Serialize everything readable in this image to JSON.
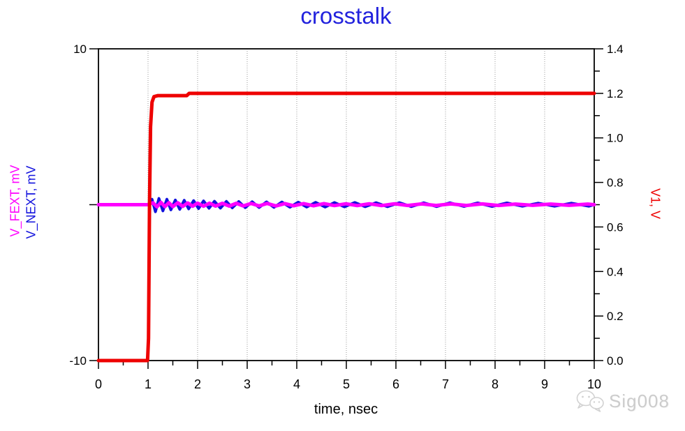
{
  "title": {
    "text": "crosstalk"
  },
  "colors": {
    "title": "#2222dd",
    "v1_trace": "#ee0000",
    "fext_trace": "#ff00ff",
    "next_trace": "#1111dd",
    "axis": "#000000",
    "grid": "#999999",
    "watermark": "#cccccc"
  },
  "watermark": {
    "icon": "wechat-icon",
    "label": "Sig008"
  },
  "chart_data": {
    "type": "line",
    "title": "crosstalk",
    "xlabel": "time, nsec",
    "grid": "vertical-dotted",
    "x_axis": {
      "range": [
        0,
        10
      ],
      "major_ticks": [
        0,
        1,
        2,
        3,
        4,
        5,
        6,
        7,
        8,
        9,
        10
      ],
      "minor_step": 0.5,
      "grid_lines": [
        1,
        2,
        3,
        4,
        5,
        6,
        7,
        8,
        9
      ]
    },
    "left_axis": {
      "labels": [
        {
          "text": "V_FEXT, mV",
          "color": "#ff00ff"
        },
        {
          "text": "V_NEXT, mV",
          "color": "#1111dd"
        }
      ],
      "range": [
        -10,
        10
      ],
      "ticks": [
        {
          "value": 10,
          "label": "10"
        },
        {
          "value": 0,
          "label": ""
        },
        {
          "value": -10,
          "label": "-10"
        }
      ]
    },
    "right_axis": {
      "label": "V1, V",
      "range": [
        0,
        1.4
      ],
      "major_tick_step": 0.2,
      "minor_tick_step": 0.1,
      "tick_labels": [
        "0.0",
        "0.2",
        "0.4",
        "0.6",
        "0.8",
        "1.0",
        "1.2",
        "1.4"
      ]
    },
    "series": [
      {
        "name": "V_NEXT",
        "axis": "left",
        "color": "#1111dd",
        "width": 4,
        "points": [
          [
            1.0,
            0
          ],
          [
            1.08,
            0.35
          ],
          [
            1.15,
            -0.45
          ],
          [
            1.22,
            0.4
          ],
          [
            1.3,
            -0.4
          ],
          [
            1.38,
            0.35
          ],
          [
            1.46,
            -0.33
          ],
          [
            1.55,
            0.3
          ],
          [
            1.64,
            -0.3
          ],
          [
            1.73,
            0.28
          ],
          [
            1.82,
            -0.27
          ],
          [
            1.92,
            0.26
          ],
          [
            2.02,
            -0.25
          ],
          [
            2.12,
            0.24
          ],
          [
            2.23,
            -0.23
          ],
          [
            2.34,
            0.22
          ],
          [
            2.46,
            -0.22
          ],
          [
            2.58,
            0.21
          ],
          [
            2.7,
            -0.2
          ],
          [
            2.83,
            0.2
          ],
          [
            2.96,
            -0.19
          ],
          [
            3.1,
            0.19
          ],
          [
            3.24,
            -0.18
          ],
          [
            3.39,
            0.18
          ],
          [
            3.54,
            -0.17
          ],
          [
            3.7,
            0.17
          ],
          [
            3.86,
            -0.16
          ],
          [
            4.03,
            0.16
          ],
          [
            4.2,
            -0.15
          ],
          [
            4.38,
            0.15
          ],
          [
            4.57,
            -0.15
          ],
          [
            4.76,
            0.14
          ],
          [
            4.96,
            -0.14
          ],
          [
            5.17,
            0.14
          ],
          [
            5.38,
            -0.13
          ],
          [
            5.6,
            0.13
          ],
          [
            5.83,
            -0.13
          ],
          [
            6.07,
            0.13
          ],
          [
            6.31,
            -0.12
          ],
          [
            6.56,
            0.12
          ],
          [
            6.82,
            -0.12
          ],
          [
            7.09,
            0.12
          ],
          [
            7.37,
            -0.11
          ],
          [
            7.65,
            0.11
          ],
          [
            7.94,
            -0.11
          ],
          [
            8.24,
            0.11
          ],
          [
            8.55,
            -0.1
          ],
          [
            8.87,
            0.1
          ],
          [
            9.2,
            -0.1
          ],
          [
            9.54,
            0.1
          ],
          [
            9.89,
            -0.1
          ],
          [
            10,
            0
          ]
        ]
      },
      {
        "name": "V_FEXT",
        "axis": "left",
        "color": "#ff00ff",
        "width": 5,
        "points": [
          [
            0,
            0
          ],
          [
            1.0,
            0
          ],
          [
            1.1,
            0.12
          ],
          [
            1.18,
            -0.14
          ],
          [
            1.26,
            0.15
          ],
          [
            1.34,
            -0.13
          ],
          [
            1.42,
            0.13
          ],
          [
            1.5,
            -0.12
          ],
          [
            1.6,
            0.12
          ],
          [
            1.7,
            -0.11
          ],
          [
            1.8,
            0.11
          ],
          [
            1.9,
            -0.1
          ],
          [
            2.0,
            0.1
          ],
          [
            2.12,
            -0.1
          ],
          [
            2.24,
            0.1
          ],
          [
            2.36,
            -0.09
          ],
          [
            2.5,
            0.09
          ],
          [
            2.64,
            -0.09
          ],
          [
            2.78,
            0.09
          ],
          [
            2.92,
            -0.08
          ],
          [
            3.08,
            0.08
          ],
          [
            3.24,
            -0.08
          ],
          [
            3.4,
            0.08
          ],
          [
            3.58,
            -0.08
          ],
          [
            3.76,
            0.07
          ],
          [
            3.94,
            -0.07
          ],
          [
            4.14,
            0.07
          ],
          [
            4.34,
            -0.07
          ],
          [
            4.55,
            0.07
          ],
          [
            4.76,
            -0.06
          ],
          [
            4.99,
            0.06
          ],
          [
            5.22,
            -0.06
          ],
          [
            5.46,
            0.06
          ],
          [
            5.71,
            -0.06
          ],
          [
            5.97,
            0.06
          ],
          [
            6.24,
            -0.05
          ],
          [
            6.52,
            0.05
          ],
          [
            6.81,
            -0.05
          ],
          [
            7.11,
            0.05
          ],
          [
            7.42,
            -0.05
          ],
          [
            7.74,
            0.05
          ],
          [
            8.07,
            -0.05
          ],
          [
            8.41,
            0.04
          ],
          [
            8.76,
            -0.04
          ],
          [
            9.12,
            0.04
          ],
          [
            9.49,
            -0.04
          ],
          [
            9.87,
            0.04
          ],
          [
            10,
            0
          ]
        ]
      },
      {
        "name": "V1",
        "axis": "right",
        "color": "#ee0000",
        "width": 5,
        "points": [
          [
            0,
            0
          ],
          [
            0.99,
            0
          ],
          [
            1.01,
            0.1
          ],
          [
            1.03,
            0.7
          ],
          [
            1.05,
            1.05
          ],
          [
            1.08,
            1.16
          ],
          [
            1.12,
            1.185
          ],
          [
            1.2,
            1.19
          ],
          [
            1.78,
            1.19
          ],
          [
            1.83,
            1.2
          ],
          [
            10,
            1.2
          ]
        ]
      }
    ]
  }
}
